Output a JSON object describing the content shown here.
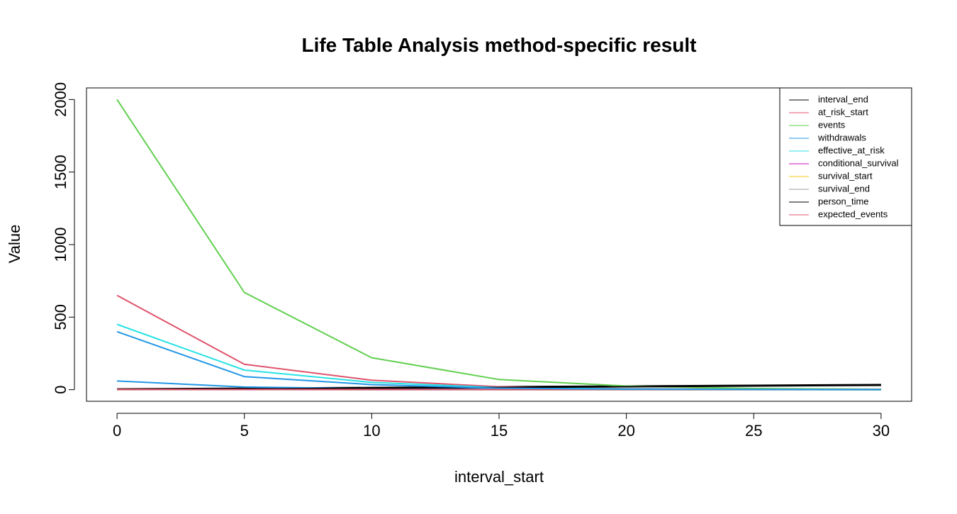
{
  "chart_data": {
    "type": "line",
    "title": "Life Table Analysis method-specific result",
    "xlabel": "interval_start",
    "ylabel": "Value",
    "xlim": [
      -1.2,
      31.2
    ],
    "ylim": [
      -80,
      2080
    ],
    "x_ticks": [
      0,
      5,
      10,
      15,
      20,
      25,
      30
    ],
    "y_ticks": [
      0,
      500,
      1000,
      1500,
      2000
    ],
    "x": [
      0,
      5,
      10,
      15,
      20,
      25,
      30
    ],
    "legend_position": "top-right",
    "grid": false,
    "series": [
      {
        "name": "interval_end",
        "color": "#000000",
        "values": [
          5,
          10,
          15,
          20,
          25,
          30,
          35
        ]
      },
      {
        "name": "at_risk_start",
        "color": "#DF536B",
        "values": [
          650,
          175,
          65,
          20,
          7,
          3,
          1
        ]
      },
      {
        "name": "events",
        "color": "#61D04F",
        "values": [
          2000,
          670,
          220,
          70,
          25,
          8,
          3
        ]
      },
      {
        "name": "withdrawals",
        "color": "#2297E6",
        "values": [
          60,
          18,
          8,
          4,
          2,
          1,
          0
        ]
      },
      {
        "name": "effective_at_risk",
        "color": "#28E2E5",
        "values": [
          450,
          135,
          50,
          15,
          5,
          2,
          1
        ]
      },
      {
        "name": "conditional_survival",
        "color": "#CD0BBC",
        "values": [
          0.6,
          0.65,
          0.7,
          0.7,
          0.7,
          0.7,
          0.7
        ]
      },
      {
        "name": "survival_start",
        "color": "#F5C710",
        "values": [
          1,
          0.6,
          0.4,
          0.3,
          0.2,
          0.14,
          0.1
        ]
      },
      {
        "name": "survival_end",
        "color": "#9E9E9E",
        "values": [
          0.6,
          0.4,
          0.3,
          0.2,
          0.14,
          0.1,
          0.07
        ]
      },
      {
        "name": "person_time",
        "color": "#000000",
        "values": [
          2,
          5,
          10,
          15,
          20,
          25,
          30
        ]
      },
      {
        "name": "expected_events",
        "color": "#DF536B",
        "values": [
          1,
          1,
          1,
          1,
          1,
          1,
          1
        ]
      },
      {
        "name": "",
        "color": "#2297E6",
        "values": [
          400,
          90,
          35,
          10,
          3,
          1,
          0
        ]
      }
    ]
  }
}
